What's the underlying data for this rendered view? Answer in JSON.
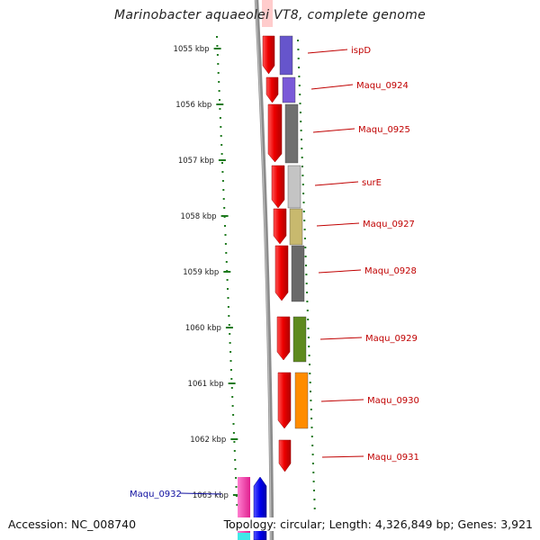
{
  "title": "Marinobacter aquaeolei VT8, complete genome",
  "footer": {
    "accession": "Accession: NC_008740",
    "topology": "Topology: circular; Length: 4,326,849 bp; Genes: 3,921"
  },
  "ticks": [
    "1055 kbp",
    "1056 kbp",
    "1057 kbp",
    "1058 kbp",
    "1059 kbp",
    "1060 kbp",
    "1061 kbp",
    "1062 kbp",
    "1063 kbp"
  ],
  "genes": [
    {
      "name": "ispD",
      "color": "#6655cc"
    },
    {
      "name": "Maqu_0924",
      "color": "#7a5ad8"
    },
    {
      "name": "Maqu_0925",
      "color": "#707070"
    },
    {
      "name": "surE",
      "color": "#c4c4c4"
    },
    {
      "name": "Maqu_0927",
      "color": "#c8b96e"
    },
    {
      "name": "Maqu_0928",
      "color": "#6a6a6a"
    },
    {
      "name": "Maqu_0929",
      "color": "#5e8a1e"
    },
    {
      "name": "Maqu_0930",
      "color": "#ff8c00"
    },
    {
      "name": "Maqu_0931",
      "color": "#e00000"
    },
    {
      "name": "Maqu_0932",
      "color": "#ff2fb0"
    }
  ],
  "colors": {
    "cds": "#ee0000",
    "backbone": "#888888",
    "tick": "#1e7a1e",
    "label": "#c00000"
  }
}
